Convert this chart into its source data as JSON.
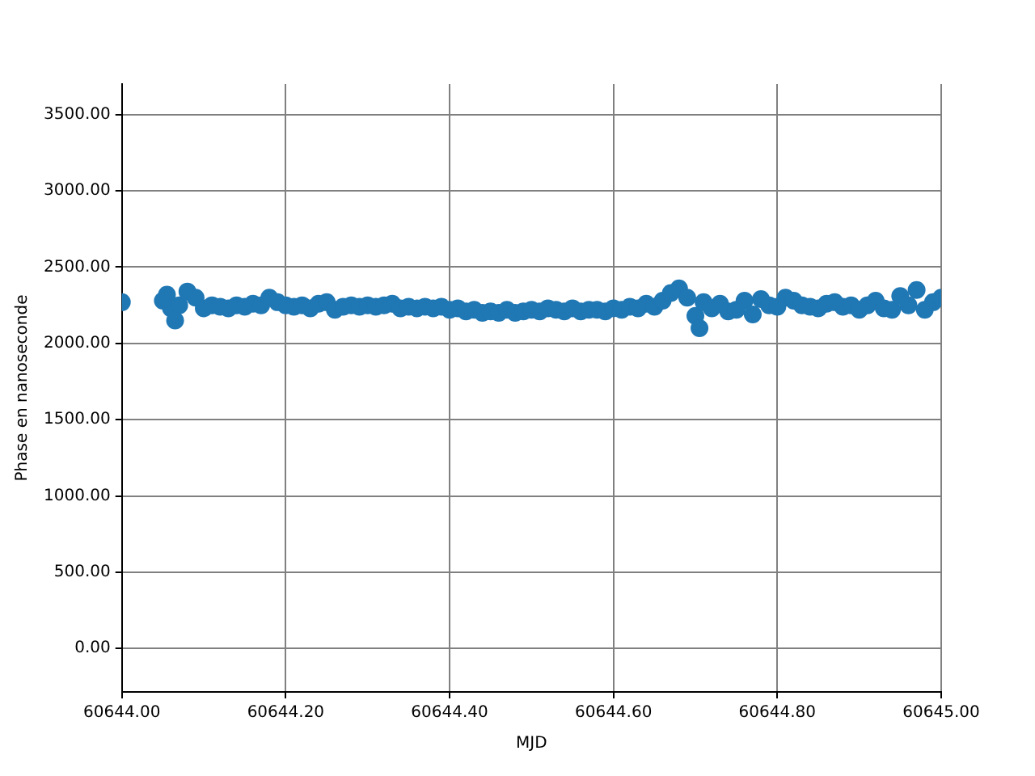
{
  "chart_data": {
    "type": "scatter",
    "xlabel": "MJD",
    "ylabel": "Phase en nanoseconde",
    "xlim": [
      60644.0,
      60645.0
    ],
    "xticks": [
      {
        "value": 60644.0,
        "label": "60644.00"
      },
      {
        "value": 60644.2,
        "label": "60644.20"
      },
      {
        "value": 60644.4,
        "label": "60644.40"
      },
      {
        "value": 60644.6,
        "label": "60644.60"
      },
      {
        "value": 60644.8,
        "label": "60644.80"
      },
      {
        "value": 60645.0,
        "label": "60645.00"
      }
    ],
    "ylim": [
      -285,
      3700
    ],
    "yticks": [
      {
        "value": 0,
        "label": "0.00"
      },
      {
        "value": 500,
        "label": "500.00"
      },
      {
        "value": 1000,
        "label": "1000.00"
      },
      {
        "value": 1500,
        "label": "1500.00"
      },
      {
        "value": 2000,
        "label": "2000.00"
      },
      {
        "value": 2500,
        "label": "2500.00"
      },
      {
        "value": 3000,
        "label": "3000.00"
      },
      {
        "value": 3500,
        "label": "3500.00"
      }
    ],
    "grid": true,
    "marker": "circle",
    "legend": false,
    "series": [
      {
        "color": "#1f77b4",
        "x": [
          60644.0,
          60644.05,
          60644.055,
          60644.06,
          60644.065,
          60644.07,
          60644.08,
          60644.09,
          60644.1,
          60644.11,
          60644.12,
          60644.13,
          60644.14,
          60644.15,
          60644.16,
          60644.17,
          60644.18,
          60644.19,
          60644.2,
          60644.21,
          60644.22,
          60644.23,
          60644.24,
          60644.25,
          60644.26,
          60644.27,
          60644.28,
          60644.29,
          60644.3,
          60644.31,
          60644.32,
          60644.33,
          60644.34,
          60644.35,
          60644.36,
          60644.37,
          60644.38,
          60644.39,
          60644.4,
          60644.41,
          60644.42,
          60644.43,
          60644.44,
          60644.45,
          60644.46,
          60644.47,
          60644.48,
          60644.49,
          60644.5,
          60644.51,
          60644.52,
          60644.53,
          60644.54,
          60644.55,
          60644.56,
          60644.57,
          60644.58,
          60644.59,
          60644.6,
          60644.61,
          60644.62,
          60644.63,
          60644.64,
          60644.65,
          60644.66,
          60644.67,
          60644.68,
          60644.69,
          60644.7,
          60644.705,
          60644.71,
          60644.72,
          60644.73,
          60644.74,
          60644.75,
          60644.76,
          60644.77,
          60644.78,
          60644.79,
          60644.8,
          60644.81,
          60644.82,
          60644.83,
          60644.84,
          60644.85,
          60644.86,
          60644.87,
          60644.88,
          60644.89,
          60644.9,
          60644.91,
          60644.92,
          60644.93,
          60644.94,
          60644.95,
          60644.96,
          60644.97,
          60644.98,
          60644.99,
          60645.0
        ],
        "values": [
          2270,
          2280,
          2320,
          2230,
          2150,
          2250,
          2340,
          2300,
          2230,
          2250,
          2240,
          2230,
          2250,
          2240,
          2260,
          2250,
          2300,
          2270,
          2250,
          2240,
          2250,
          2230,
          2260,
          2270,
          2220,
          2240,
          2250,
          2240,
          2250,
          2240,
          2250,
          2260,
          2230,
          2240,
          2230,
          2240,
          2230,
          2240,
          2220,
          2230,
          2210,
          2220,
          2200,
          2210,
          2200,
          2220,
          2200,
          2210,
          2220,
          2210,
          2230,
          2220,
          2210,
          2230,
          2210,
          2220,
          2220,
          2210,
          2230,
          2220,
          2240,
          2230,
          2260,
          2240,
          2280,
          2330,
          2360,
          2300,
          2180,
          2100,
          2270,
          2230,
          2260,
          2210,
          2220,
          2280,
          2190,
          2290,
          2250,
          2240,
          2300,
          2280,
          2250,
          2240,
          2230,
          2260,
          2270,
          2240,
          2250,
          2220,
          2250,
          2280,
          2230,
          2220,
          2310,
          2250,
          2350,
          2220,
          2270,
          2300
        ]
      }
    ]
  }
}
